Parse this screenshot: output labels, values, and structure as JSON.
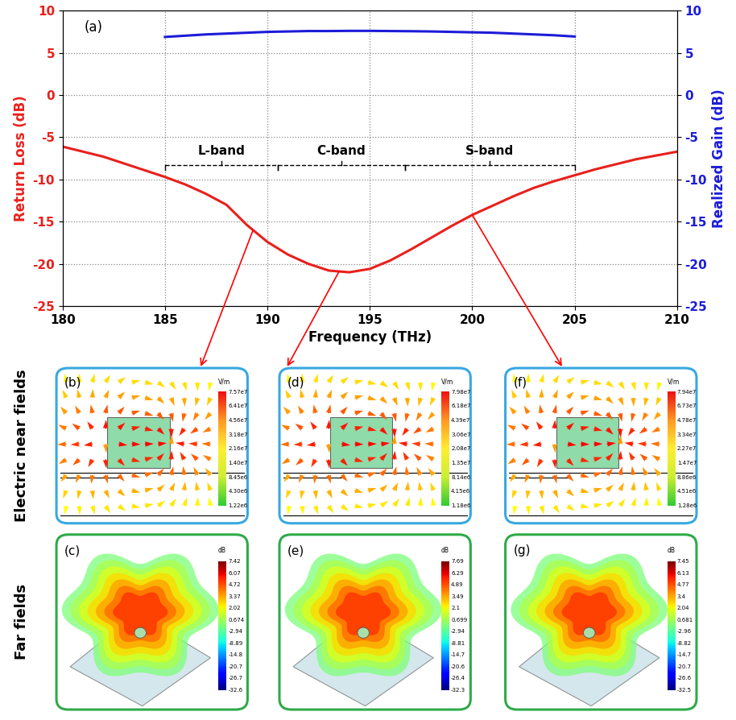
{
  "chart_data": {
    "type": "line",
    "title": "(a)",
    "x_label": "Frequency (THz)",
    "y_label": "Return Loss (dB)",
    "y2_label": "Realized Gain (dB)",
    "x": [
      180,
      182,
      184,
      185,
      186,
      187,
      188,
      189,
      190,
      191,
      192,
      193,
      194,
      195,
      196,
      197,
      198,
      199,
      200,
      201,
      202,
      203,
      204,
      205,
      206,
      208,
      210
    ],
    "series": [
      {
        "name": "Return Loss",
        "color": "#e8201c",
        "type": "line",
        "values": [
          -6.1,
          -7.3,
          -8.9,
          -9.7,
          -10.6,
          -11.7,
          -13.0,
          -15.4,
          -17.4,
          -18.9,
          -20.0,
          -20.8,
          -21.0,
          -20.6,
          -19.6,
          -18.3,
          -16.9,
          -15.5,
          -14.2,
          -13.1,
          -12.0,
          -11.0,
          -10.2,
          -9.5,
          -8.8,
          -7.6,
          -6.7
        ]
      },
      {
        "name": "Realized Gain",
        "color": "#1c1cd8",
        "type": "line",
        "axis": "y2",
        "values": [
          null,
          null,
          null,
          6.9,
          7.05,
          7.2,
          7.3,
          7.4,
          7.5,
          7.55,
          7.6,
          7.6,
          7.62,
          7.62,
          7.6,
          7.58,
          7.55,
          7.5,
          7.45,
          7.4,
          7.3,
          7.2,
          7.1,
          6.95,
          null,
          null,
          null
        ]
      }
    ],
    "xlim": [
      180,
      210
    ],
    "xticks": [
      180,
      185,
      190,
      195,
      200,
      205,
      210
    ],
    "ylim": [
      -25,
      10
    ],
    "yticks": [
      -25,
      -20,
      -15,
      -10,
      -5,
      0,
      5,
      10
    ],
    "y2lim": [
      -25,
      10
    ],
    "y2ticks": [
      -25,
      -20,
      -15,
      -10,
      -5,
      0,
      5,
      10
    ],
    "grid": true,
    "annotations": [
      {
        "text": "L-band",
        "x": [
          185,
          190.5
        ],
        "y": -8.3
      },
      {
        "text": "C-band",
        "x": [
          190.5,
          196.7
        ],
        "y": -8.3
      },
      {
        "text": "S-band",
        "x": [
          196.7,
          205
        ],
        "y": -8.3
      }
    ],
    "arrows": [
      {
        "x": 189.3,
        "to": "(b)"
      },
      {
        "x": 193.5,
        "to": "(d)"
      },
      {
        "x": 200,
        "to": "(f)"
      }
    ]
  },
  "row_labels": [
    "Electric near fields",
    "Far fields"
  ],
  "panels": [
    {
      "label": "(b)",
      "kind": "near",
      "unit": "V/m",
      "colorbar_ticks": [
        "7.57e7",
        "6.41e7",
        "4.56e7",
        "3.18e7",
        "2.16e7",
        "1.40e7",
        "8.45e6",
        "4.30e6",
        "1.22e6"
      ]
    },
    {
      "label": "(d)",
      "kind": "near",
      "unit": "V/m",
      "colorbar_ticks": [
        "7.98e7",
        "6.18e7",
        "4.39e7",
        "3.06e7",
        "2.08e7",
        "1.35e7",
        "8.14e6",
        "4.15e6",
        "1.18e6"
      ]
    },
    {
      "label": "(f)",
      "kind": "near",
      "unit": "V/m",
      "colorbar_ticks": [
        "7.94e7",
        "6.73e7",
        "4.78e7",
        "3.34e7",
        "2.27e7",
        "1.47e7",
        "8.86e6",
        "4.51e6",
        "1.28e6"
      ]
    },
    {
      "label": "(c)",
      "kind": "far",
      "unit": "dB",
      "colorbar_ticks": [
        "7.42",
        "6.07",
        "4.72",
        "3.37",
        "2.02",
        "0.674",
        "-2.94",
        "-8.89",
        "-14.8",
        "-20.7",
        "-26.7",
        "-32.6"
      ]
    },
    {
      "label": "(e)",
      "kind": "far",
      "unit": "dB",
      "colorbar_ticks": [
        "7.69",
        "6.29",
        "4.89",
        "3.49",
        "2.1",
        "0.699",
        "-2.94",
        "-8.81",
        "-14.7",
        "-20.6",
        "-26.4",
        "-32.3"
      ]
    },
    {
      "label": "(g)",
      "kind": "far",
      "unit": "dB",
      "colorbar_ticks": [
        "7.45",
        "6.13",
        "4.77",
        "3.4",
        "2.04",
        "0.681",
        "-2.96",
        "-8.82",
        "-14.7",
        "-20.7",
        "-26.6",
        "-32.5"
      ]
    }
  ]
}
